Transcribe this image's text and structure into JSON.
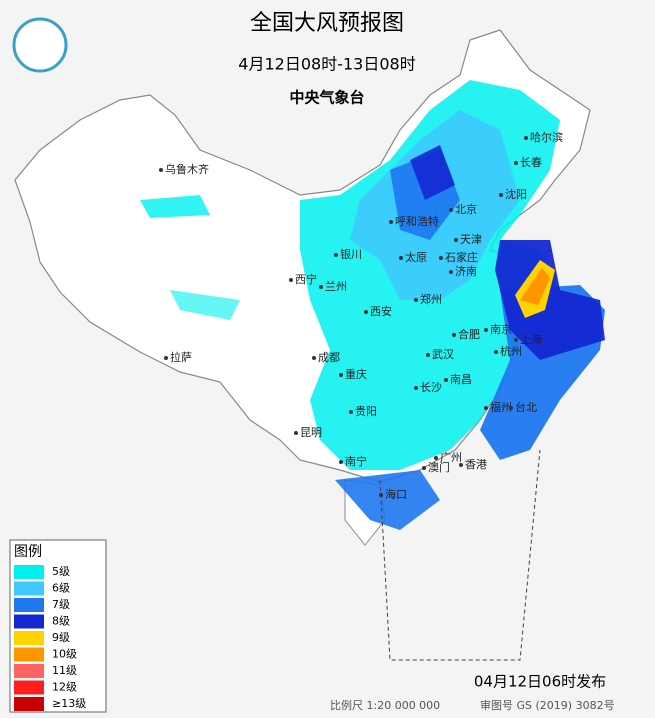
{
  "header": {
    "title": "全国大风预报图",
    "period": "4月12日08时-13日08时",
    "issuer": "中央气象台"
  },
  "legend": {
    "title": "图例",
    "items": [
      {
        "label": "5级",
        "color": "#00f0f0"
      },
      {
        "label": "6级",
        "color": "#40c8ff"
      },
      {
        "label": "7级",
        "color": "#1e78f0"
      },
      {
        "label": "8级",
        "color": "#1428d2"
      },
      {
        "label": "9级",
        "color": "#ffd200"
      },
      {
        "label": "10级",
        "color": "#ff9600"
      },
      {
        "label": "11级",
        "color": "#ff6464"
      },
      {
        "label": "12级",
        "color": "#ff1e1e"
      },
      {
        "label": "≥13级",
        "color": "#c80000"
      }
    ]
  },
  "cities": [
    "乌鲁木齐",
    "哈尔滨",
    "长春",
    "沈阳",
    "北京",
    "天津",
    "呼和浩特",
    "石家庄",
    "太原",
    "济南",
    "银川",
    "西宁",
    "兰州",
    "郑州",
    "西安",
    "合肥",
    "南京",
    "上海",
    "杭州",
    "武汉",
    "成都",
    "拉萨",
    "重庆",
    "南昌",
    "长沙",
    "贵阳",
    "福州",
    "台北",
    "昆明",
    "南宁",
    "广州",
    "澳门",
    "香港",
    "海口"
  ],
  "footer": {
    "issued": "04月12日06时发布",
    "scale": "比例尺 1:20 000 000",
    "review": "审图号 GS (2019) 3082号"
  }
}
